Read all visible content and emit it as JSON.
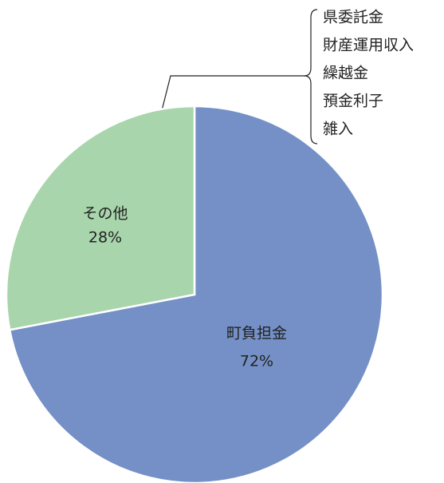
{
  "chart_data": {
    "type": "pie",
    "categories": [
      "町負担金",
      "その他"
    ],
    "values": [
      72,
      28
    ],
    "value_labels": [
      "72%",
      "28%"
    ],
    "colors": [
      "#7590c6",
      "#a8d5ac"
    ],
    "annotation_items": [
      "県委託金",
      "財産運用収入",
      "繰越金",
      "預金利子",
      "雑入"
    ]
  }
}
